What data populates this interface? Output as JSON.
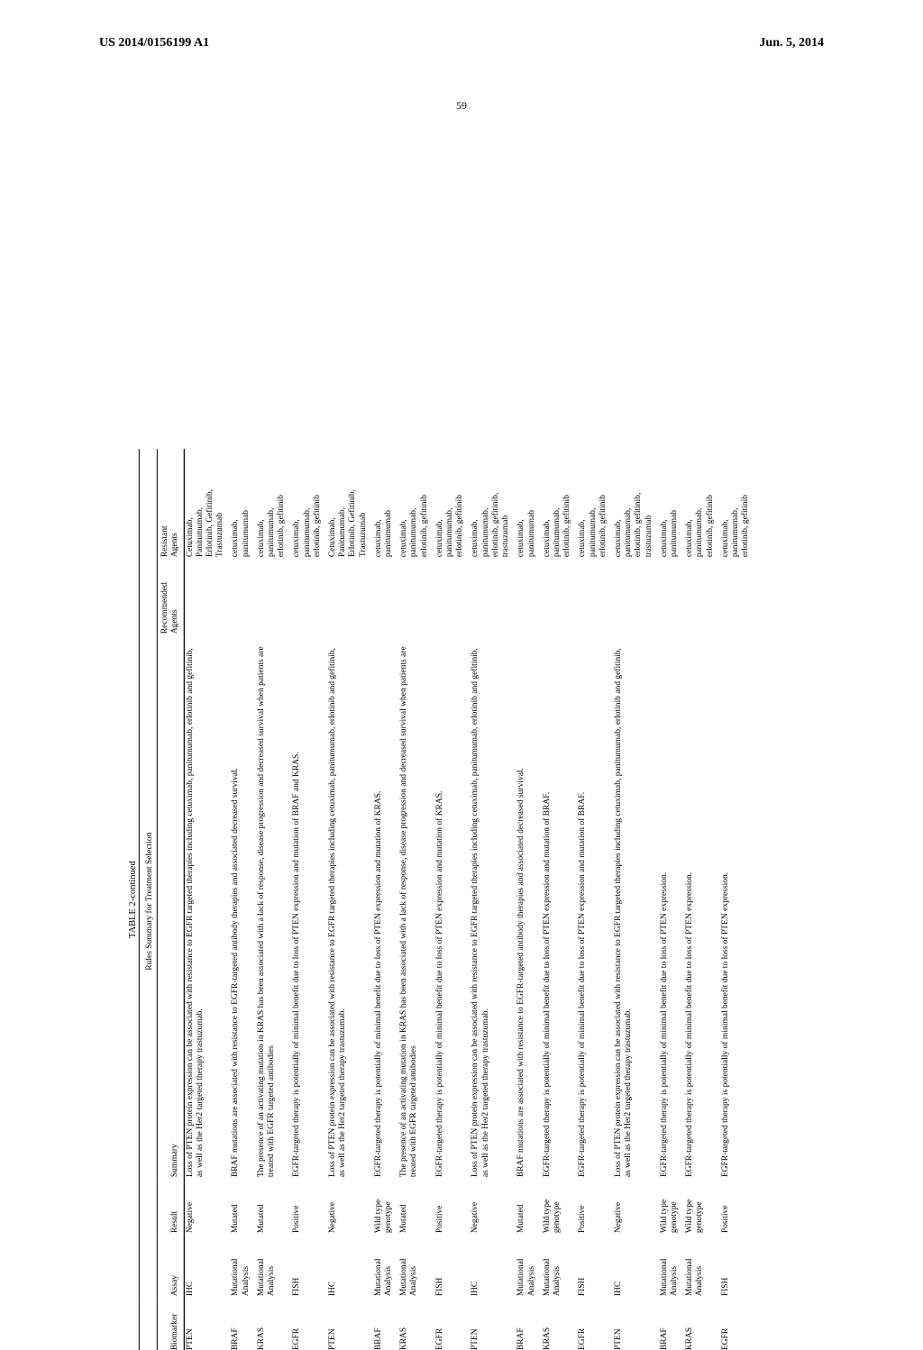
{
  "header": {
    "left": "US 2014/0156199 A1",
    "right": "Jun. 5, 2014",
    "pageNumber": "59"
  },
  "table": {
    "title": "TABLE 2-continued",
    "subtitle": "Rules Summary for Treatment Selection",
    "columns": [
      "Biomarker",
      "Assay",
      "Result",
      "Summary",
      "Recommended\nAgents",
      "Resistant\nAgents"
    ],
    "rows": [
      {
        "biomarker": "PTEN",
        "assay": "IHC",
        "result": "Negative",
        "summary": "Loss of PTEN protein expression can be associated with resistance to EGFR targeted therapies including cetuximab, panitumumab, erlotinib and gefitinib, as well as the Her2 targeted therapy trastuzumab.",
        "recommended": "",
        "resistant": "Cetuximab,\nPanitumumab,\nErlotinib, Gefitinib,\nTrastuzumab"
      },
      {
        "biomarker": "BRAF",
        "assay": "Mutational\nAnalysis",
        "result": "Mutated",
        "summary": "BRAF mutations are associated with resistance to EGFR-targeted antibody therapies and associated decreased survival.",
        "recommended": "",
        "resistant": "cetuximab,\npanitumumab"
      },
      {
        "biomarker": "KRAS",
        "assay": "Mutational\nAnalysis",
        "result": "Mutated",
        "summary": "The presence of an activating mutation in KRAS has been associated with a lack of response, disease progression and decreased survival when patients are treated with EGFR targeted antibodies",
        "recommended": "",
        "resistant": "cetuximab,\npanitumumab,\nerlotinib, gefitinib"
      },
      {
        "biomarker": "EGFR",
        "assay": "FISH",
        "result": "Positive",
        "summary": "EGFR-targeted therapy is potentially of minimal benefit due to loss of PTEN expression and mutation of BRAF and KRAS.",
        "recommended": "",
        "resistant": "cetuximab,\npanitumumab,\nerlotinib, gefitinib"
      },
      {
        "biomarker": "PTEN",
        "assay": "IHC",
        "result": "Negative",
        "summary": "Loss of PTEN protein expression can be associated with resistance to EGFR targeted therapies including cetuximab, panitumumab, erlotinib and gefitinib, as well as the Her2 targeted therapy trastuzumab.",
        "recommended": "",
        "resistant": "Cetuximab,\nPanitumumab,\nErlotinib, Gefitinib,\nTrastuzumab"
      },
      {
        "biomarker": "BRAF",
        "assay": "Mutational\nAnalysis",
        "result": "Wild type\ngenotype",
        "summary": "EGFR-targeted therapy is potentially of minimal benefit due to loss of PTEN expression and mutation of KRAS.",
        "recommended": "",
        "resistant": "cetuximab,\npanitumumab"
      },
      {
        "biomarker": "KRAS",
        "assay": "Mutational\nAnalysis",
        "result": "Mutated",
        "summary": "The presence of an activating mutation in KRAS has been associated with a lack of response, disease progression and decreased survival when patients are treated with EGFR targeted antibodies",
        "recommended": "",
        "resistant": "cetuximab,\npanitumumab,\nerlotinib, gefitinib"
      },
      {
        "biomarker": "EGFR",
        "assay": "FISH",
        "result": "Positive",
        "summary": "EGFR-targeted therapy is potentially of minimal benefit due to loss of PTEN expression and mutation of KRAS.",
        "recommended": "",
        "resistant": "cetuximab,\npanitumumab,\nerlotinib, gefitinib"
      },
      {
        "biomarker": "PTEN",
        "assay": "IHC",
        "result": "Negative",
        "summary": "Loss of PTEN protein expression can be associated with resistance to EGFR targeted therapies including cetuximab, panitumumab, erlotinib and gefitinib, as well as the Her2 targeted therapy trastuzumab.",
        "recommended": "",
        "resistant": "cetuximab,\npanitumumab,\nerlotinib, gefitinib,\ntrastuzumab"
      },
      {
        "biomarker": "BRAF",
        "assay": "Mutational\nAnalysis",
        "result": "Mutated",
        "summary": "BRAF mutations are associated with resistance to EGFR-targeted antibody therapies and associated decreased survival.",
        "recommended": "",
        "resistant": "cetuximab,\npanitumumab"
      },
      {
        "biomarker": "KRAS",
        "assay": "Mutational\nAnalysis",
        "result": "Wild type\ngenotype",
        "summary": "EGFR-targeted therapy is potentially of minimal benefit due to loss of PTEN expression and mutation of BRAF.",
        "recommended": "",
        "resistant": "cetuximab,\npanitumumab,\nerlotinib, gefitinib"
      },
      {
        "biomarker": "EGFR",
        "assay": "FISH",
        "result": "Positive",
        "summary": "EGFR-targeted therapy is potentially of minimal benefit due to loss of PTEN expression and mutation of BRAF.",
        "recommended": "",
        "resistant": "cetuximab,\npanitumumab,\nerlotinib, gefitinib"
      },
      {
        "biomarker": "PTEN",
        "assay": "IHC",
        "result": "Negative",
        "summary": "Loss of PTEN protein expression can be associated with resistance to EGFR targeted therapies including cetuximab, panitumumab, erlotinib and gefitinib, as well as the Her2 targeted therapy trastuzumab.",
        "recommended": "",
        "resistant": "cetuximab,\npanitumumab,\nerlotinib, gefitinib,\ntrastuzumab"
      },
      {
        "biomarker": "BRAF",
        "assay": "Mutational\nAnalysis",
        "result": "Wild type\ngenotype",
        "summary": "EGFR-targeted therapy is potentially of minimal benefit due to loss of PTEN expression.",
        "recommended": "",
        "resistant": "cetuximab,\npanitumumab"
      },
      {
        "biomarker": "KRAS",
        "assay": "Mutational\nAnalysis",
        "result": "Wild type\ngenotype",
        "summary": "EGFR-targeted therapy is potentially of minimal benefit due to loss of PTEN expression.",
        "recommended": "",
        "resistant": "cetuximab,\npanitumumab,\nerlotinib, gefitinib"
      },
      {
        "biomarker": "EGFR",
        "assay": "FISH",
        "result": "Positive",
        "summary": "EGFR-targeted therapy is potentially of minimal benefit due to loss of PTEN expression.",
        "recommended": "",
        "resistant": "cetuximab,\npanitumumab,\nerlotinib, gefitinib"
      }
    ]
  }
}
